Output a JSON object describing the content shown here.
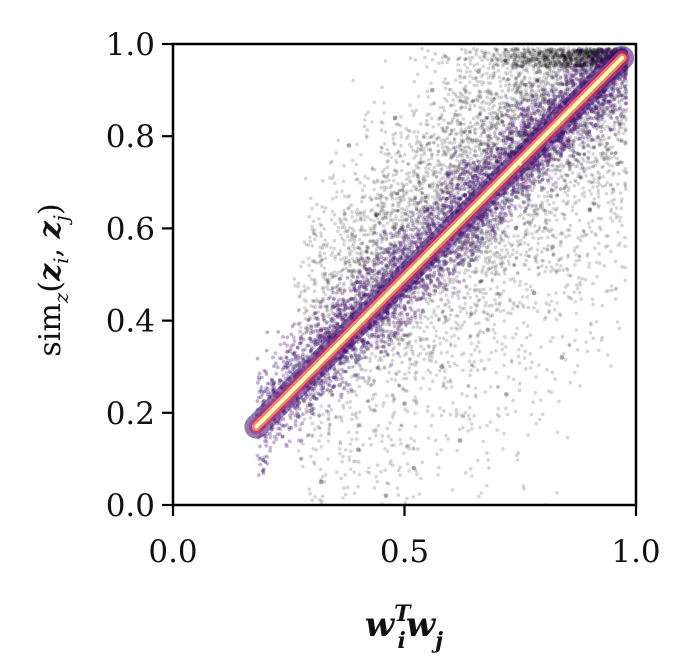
{
  "chart_data": {
    "type": "scatter",
    "title": "",
    "xlabel": {
      "base1": "w",
      "sub1": "i",
      "sup1": "T",
      "base2": "w",
      "sub2": "j"
    },
    "ylabel": {
      "func": "sim",
      "func_sub": "z",
      "open": "(",
      "arg1": "z",
      "arg1_sub": "i",
      "sep": ", ",
      "arg2": "z",
      "arg2_sub": "j",
      "close": ")"
    },
    "xlim": [
      0.0,
      1.0
    ],
    "ylim": [
      0.0,
      1.0
    ],
    "x_ticks": [
      0.0,
      0.5,
      1.0
    ],
    "x_tick_labels": [
      "0.0",
      "0.5",
      "1.0"
    ],
    "y_ticks": [
      0.0,
      0.2,
      0.4,
      0.6,
      0.8,
      1.0
    ],
    "y_tick_labels": [
      "0.0",
      "0.2",
      "0.4",
      "0.6",
      "0.8",
      "1.0"
    ],
    "grid": false,
    "legend": "none",
    "colors": {
      "background_points": "#000000",
      "density_low": "#3b0f70",
      "density_mid": "#b5367a",
      "density_high": "#fb8861",
      "density_peak": "#fcfdbf"
    },
    "series": [
      {
        "style": "black-scatter",
        "points": [
          [
            0.3,
            0.2
          ],
          [
            0.32,
            0.05
          ],
          [
            0.36,
            0.26
          ],
          [
            0.38,
            0.78
          ],
          [
            0.4,
            0.12
          ],
          [
            0.42,
            0.34
          ],
          [
            0.44,
            0.63
          ],
          [
            0.46,
            0.02
          ],
          [
            0.48,
            0.84
          ],
          [
            0.5,
            0.22
          ],
          [
            0.52,
            0.08
          ],
          [
            0.54,
            0.42
          ],
          [
            0.56,
            0.9
          ],
          [
            0.58,
            0.3
          ],
          [
            0.6,
            0.7
          ],
          [
            0.62,
            0.14
          ],
          [
            0.64,
            0.52
          ],
          [
            0.66,
            0.94
          ],
          [
            0.68,
            0.38
          ],
          [
            0.7,
            0.84
          ],
          [
            0.72,
            0.24
          ],
          [
            0.74,
            0.6
          ],
          [
            0.76,
            0.96
          ],
          [
            0.78,
            0.46
          ],
          [
            0.8,
            0.88
          ],
          [
            0.82,
            0.56
          ],
          [
            0.84,
            0.32
          ],
          [
            0.86,
            0.78
          ],
          [
            0.88,
            0.98
          ],
          [
            0.9,
            0.64
          ],
          [
            0.92,
            0.86
          ],
          [
            0.94,
            0.92
          ],
          [
            0.96,
            0.74
          ]
        ]
      },
      {
        "style": "density-band",
        "points": [
          [
            0.18,
            0.17
          ],
          [
            0.35,
            0.34
          ],
          [
            0.55,
            0.54
          ],
          [
            0.75,
            0.74
          ],
          [
            0.97,
            0.97
          ]
        ]
      }
    ]
  }
}
